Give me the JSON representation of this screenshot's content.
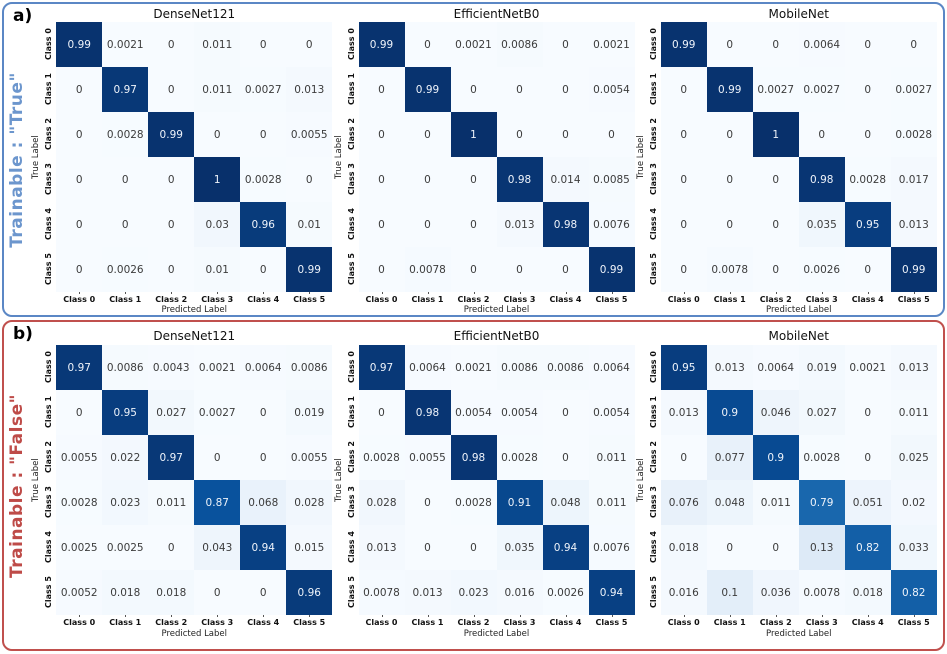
{
  "chart_data": {
    "type": "heatmap",
    "subtype": "confusion-matrix-grid",
    "colormap": "Blues",
    "value_range": [
      0,
      1
    ],
    "x_categories": [
      "Class 0",
      "Class 1",
      "Class 2",
      "Class 3",
      "Class 4",
      "Class 5"
    ],
    "y_categories": [
      "Class 0",
      "Class 1",
      "Class 2",
      "Class 3",
      "Class 4",
      "Class 5"
    ],
    "xlabel": "Predicted Label",
    "ylabel": "True Label",
    "panels": [
      {
        "corner_label": "a)",
        "side_label": "Trainable : \"True\"",
        "side_label_color": "#6C96CD",
        "border_color": "#5B87C5",
        "matrices": [
          {
            "title": "DenseNet121",
            "values": [
              [
                "0.99",
                "0.0021",
                "0",
                "0.011",
                "0",
                "0"
              ],
              [
                "0",
                "0.97",
                "0",
                "0.011",
                "0.0027",
                "0.013"
              ],
              [
                "0",
                "0.0028",
                "0.99",
                "0",
                "0",
                "0.0055"
              ],
              [
                "0",
                "0",
                "0",
                "1",
                "0.0028",
                "0"
              ],
              [
                "0",
                "0",
                "0",
                "0.03",
                "0.96",
                "0.01"
              ],
              [
                "0",
                "0.0026",
                "0",
                "0.01",
                "0",
                "0.99"
              ]
            ]
          },
          {
            "title": "EfficientNetB0",
            "values": [
              [
                "0.99",
                "0",
                "0.0021",
                "0.0086",
                "0",
                "0.0021"
              ],
              [
                "0",
                "0.99",
                "0",
                "0",
                "0",
                "0.0054"
              ],
              [
                "0",
                "0",
                "1",
                "0",
                "0",
                "0"
              ],
              [
                "0",
                "0",
                "0",
                "0.98",
                "0.014",
                "0.0085"
              ],
              [
                "0",
                "0",
                "0",
                "0.013",
                "0.98",
                "0.0076"
              ],
              [
                "0",
                "0.0078",
                "0",
                "0",
                "0",
                "0.99"
              ]
            ]
          },
          {
            "title": "MobileNet",
            "values": [
              [
                "0.99",
                "0",
                "0",
                "0.0064",
                "0",
                "0"
              ],
              [
                "0",
                "0.99",
                "0.0027",
                "0.0027",
                "0",
                "0.0027"
              ],
              [
                "0",
                "0",
                "1",
                "0",
                "0",
                "0.0028"
              ],
              [
                "0",
                "0",
                "0",
                "0.98",
                "0.0028",
                "0.017"
              ],
              [
                "0",
                "0",
                "0",
                "0.035",
                "0.95",
                "0.013"
              ],
              [
                "0",
                "0.0078",
                "0",
                "0.0026",
                "0",
                "0.99"
              ]
            ]
          }
        ]
      },
      {
        "corner_label": "b)",
        "side_label": "Trainable : \"False\"",
        "side_label_color": "#BE4B48",
        "border_color": "#C0504D",
        "matrices": [
          {
            "title": "DenseNet121",
            "values": [
              [
                "0.97",
                "0.0086",
                "0.0043",
                "0.0021",
                "0.0064",
                "0.0086"
              ],
              [
                "0",
                "0.95",
                "0.027",
                "0.0027",
                "0",
                "0.019"
              ],
              [
                "0.0055",
                "0.022",
                "0.97",
                "0",
                "0",
                "0.0055"
              ],
              [
                "0.0028",
                "0.023",
                "0.011",
                "0.87",
                "0.068",
                "0.028"
              ],
              [
                "0.0025",
                "0.0025",
                "0",
                "0.043",
                "0.94",
                "0.015"
              ],
              [
                "0.0052",
                "0.018",
                "0.018",
                "0",
                "0",
                "0.96"
              ]
            ]
          },
          {
            "title": "EfficientNetB0",
            "values": [
              [
                "0.97",
                "0.0064",
                "0.0021",
                "0.0086",
                "0.0086",
                "0.0064"
              ],
              [
                "0",
                "0.98",
                "0.0054",
                "0.0054",
                "0",
                "0.0054"
              ],
              [
                "0.0028",
                "0.0055",
                "0.98",
                "0.0028",
                "0",
                "0.011"
              ],
              [
                "0.028",
                "0",
                "0.0028",
                "0.91",
                "0.048",
                "0.011"
              ],
              [
                "0.013",
                "0",
                "0",
                "0.035",
                "0.94",
                "0.0076"
              ],
              [
                "0.0078",
                "0.013",
                "0.023",
                "0.016",
                "0.0026",
                "0.94"
              ]
            ]
          },
          {
            "title": "MobileNet",
            "values": [
              [
                "0.95",
                "0.013",
                "0.0064",
                "0.019",
                "0.0021",
                "0.013"
              ],
              [
                "0.013",
                "0.9",
                "0.046",
                "0.027",
                "0",
                "0.011"
              ],
              [
                "0",
                "0.077",
                "0.9",
                "0.0028",
                "0",
                "0.025"
              ],
              [
                "0.076",
                "0.048",
                "0.011",
                "0.79",
                "0.051",
                "0.02"
              ],
              [
                "0.018",
                "0",
                "0",
                "0.13",
                "0.82",
                "0.033"
              ],
              [
                "0.016",
                "0.1",
                "0.036",
                "0.0078",
                "0.018",
                "0.82"
              ]
            ]
          }
        ]
      }
    ]
  }
}
